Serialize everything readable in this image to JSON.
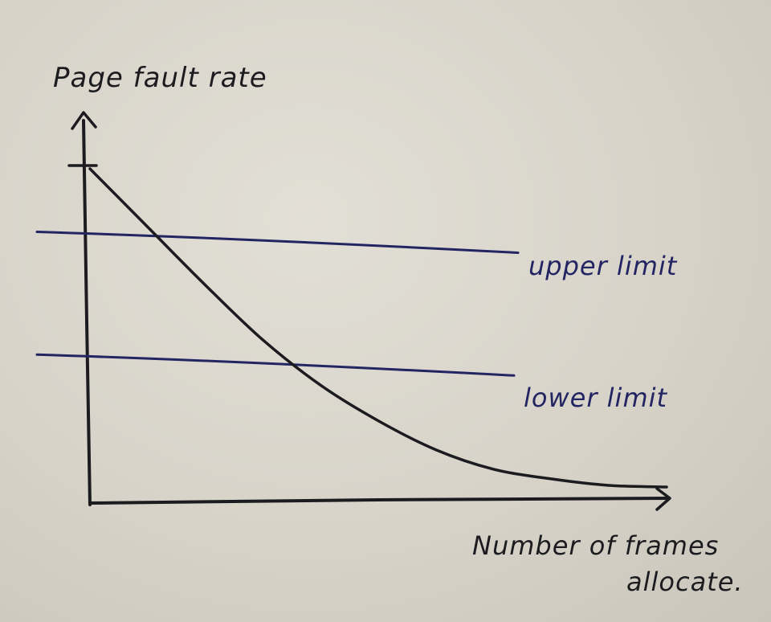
{
  "chart_data": {
    "type": "line",
    "ylabel": "Page fault rate",
    "xlabel_lines": [
      "Number of frames",
      "allocate."
    ],
    "curve": {
      "description_points_x": [
        0,
        0.1,
        0.2,
        0.3,
        0.4,
        0.5,
        0.6,
        0.7,
        0.8,
        0.9,
        1.0
      ],
      "description_points_y": [
        1.0,
        0.82,
        0.64,
        0.47,
        0.33,
        0.22,
        0.13,
        0.07,
        0.04,
        0.02,
        0.015
      ]
    },
    "reference_lines": [
      {
        "label": "upper limit",
        "y": 0.75
      },
      {
        "label": "lower limit",
        "y": 0.37
      }
    ],
    "colors": {
      "curve": "#1c1b1f",
      "axes": "#1c1b1f",
      "reference_lines": "#232563"
    },
    "grid": false
  }
}
